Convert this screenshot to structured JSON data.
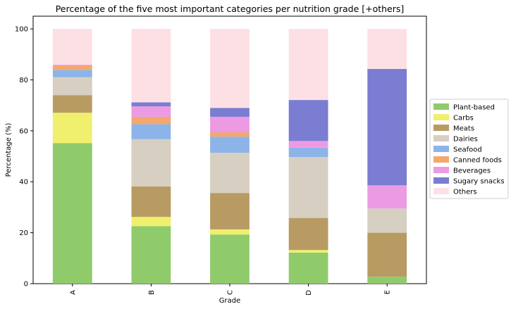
{
  "chart_data": {
    "type": "bar",
    "stacked": true,
    "title": "Percentage of the five most important categories per nutrition grade [+others]",
    "xlabel": "Grade",
    "ylabel": "Percentage (%)",
    "categories": [
      "A",
      "B",
      "C",
      "D",
      "E"
    ],
    "ylim": [
      0,
      105
    ],
    "yticks": [
      0,
      20,
      40,
      60,
      80,
      100
    ],
    "grid": false,
    "legend_position": "right",
    "series": [
      {
        "name": "Plant-based",
        "color": "#8fcb6b",
        "values": [
          55.2,
          22.6,
          19.3,
          12.2,
          2.7
        ]
      },
      {
        "name": "Carbs",
        "color": "#f0f06e",
        "values": [
          11.9,
          3.6,
          2.0,
          1.0,
          0.0
        ]
      },
      {
        "name": "Meats",
        "color": "#b89b62",
        "values": [
          6.9,
          12.0,
          14.3,
          12.6,
          17.3
        ]
      },
      {
        "name": "Dairies",
        "color": "#d6cfc2",
        "values": [
          7.1,
          18.5,
          15.8,
          23.9,
          9.5
        ]
      },
      {
        "name": "Seafood",
        "color": "#8db4e8",
        "values": [
          2.8,
          5.9,
          6.3,
          3.7,
          0.0
        ]
      },
      {
        "name": "Canned foods",
        "color": "#f2a86e",
        "values": [
          1.8,
          2.9,
          1.7,
          0.0,
          0.0
        ]
      },
      {
        "name": "Beverages",
        "color": "#ec9be3",
        "values": [
          0.3,
          4.1,
          6.1,
          2.6,
          9.1
        ]
      },
      {
        "name": "Sugary snacks",
        "color": "#7b7dd2",
        "values": [
          0.0,
          1.6,
          3.5,
          16.1,
          45.7
        ]
      },
      {
        "name": "Others",
        "color": "#fde0e4",
        "values": [
          14.0,
          28.8,
          31.0,
          27.9,
          15.7
        ]
      }
    ]
  }
}
